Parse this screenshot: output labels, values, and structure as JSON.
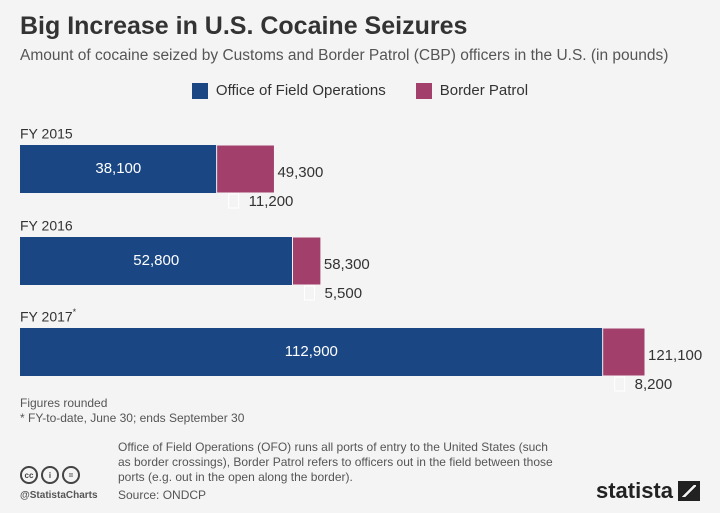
{
  "header": {
    "title": "Big Increase in U.S. Cocaine Seizures",
    "subtitle": "Amount of cocaine seized by Customs and Border Patrol (CBP) officers in the U.S. (in pounds)"
  },
  "colors": {
    "ofo": "#1a4784",
    "border_patrol": "#a23f6b",
    "background": "#f4f4f4"
  },
  "chart_data": {
    "type": "bar",
    "orientation": "horizontal",
    "stacked": true,
    "title": "Big Increase in U.S. Cocaine Seizures",
    "categories": [
      "FY 2015",
      "FY 2016",
      "FY 2017"
    ],
    "category_markers": [
      "",
      "",
      "*"
    ],
    "series": [
      {
        "name": "Office of Field Operations",
        "values": [
          38100,
          52800,
          112900
        ],
        "labels": [
          "38,100",
          "52,800",
          "112,900"
        ],
        "color": "#1a4784"
      },
      {
        "name": "Border Patrol",
        "values": [
          11200,
          5500,
          8200
        ],
        "labels": [
          "11,200",
          "5,500",
          "8,200"
        ],
        "color": "#a23f6b"
      }
    ],
    "totals": [
      49300,
      58300,
      121100
    ],
    "total_labels": [
      "49,300",
      "58,300",
      "121,100"
    ],
    "xlim": [
      0,
      121100
    ],
    "grid": false,
    "legend_position": "top-center"
  },
  "footnotes": {
    "rounded": "Figures rounded",
    "asterisk": "* FY-to-date, June 30; ends September 30"
  },
  "description": {
    "text": "Office of Field Operations (OFO) runs all ports of entry to the United States (such as border crossings), Border Patrol refers to officers out in the field between those ports (e.g. out in the open along the border).",
    "source": "Source: ONDCP"
  },
  "branding": {
    "handle": "@StatistaCharts",
    "logo": "statista",
    "icons": [
      "cc-icon",
      "by-icon",
      "nd-icon"
    ],
    "icon_glyphs": [
      "cc",
      "i",
      "="
    ]
  }
}
